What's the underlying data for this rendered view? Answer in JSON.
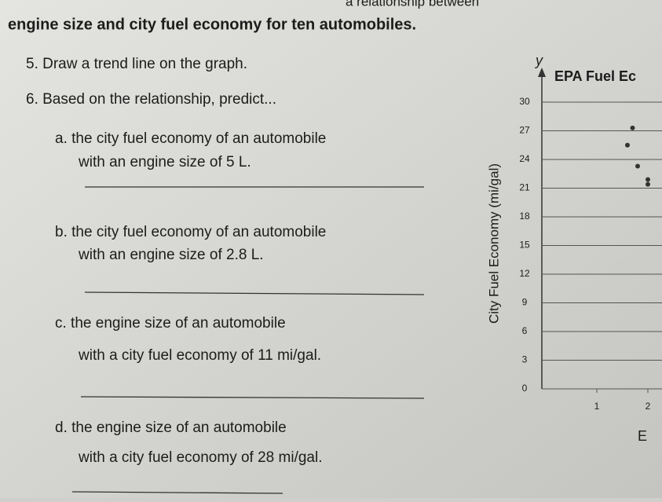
{
  "document": {
    "top_line": "a relationship between",
    "heading": "engine size and city fuel economy for ten automobiles.",
    "q5": "5. Draw a trend line on the graph.",
    "q6": "6. Based on the relationship, predict...",
    "parts": [
      {
        "line1": "a. the city fuel economy of an automobile",
        "line2": "with an engine size of 5 L."
      },
      {
        "line1": "b. the city fuel economy of an automobile",
        "line2": "with an engine size of 2.8 L."
      },
      {
        "line1": "c. the engine size of an automobile",
        "line2": "with a city fuel economy of 11 mi/gal."
      },
      {
        "line1": "d. the engine size of an automobile",
        "line2": "with a city fuel economy of 28 mi/gal."
      }
    ]
  },
  "chart_data": {
    "type": "scatter",
    "title": "EPA Fuel Ec",
    "y_axis_letter": "y",
    "y_label": "City Fuel Economy (mi/gal)",
    "x_label": "E",
    "x": [
      1.7,
      1.6,
      1.8,
      2.0,
      2.0
    ],
    "values": [
      27.3,
      25.5,
      23.3,
      21.9,
      21.4
    ],
    "color": "#333333",
    "xlim": [
      0,
      2.2
    ],
    "ylim": [
      0,
      30
    ],
    "xticks": [
      1,
      2
    ],
    "yticks": [
      0,
      3,
      6,
      9,
      12,
      15,
      18,
      21,
      24,
      27,
      30
    ],
    "grid": true
  }
}
